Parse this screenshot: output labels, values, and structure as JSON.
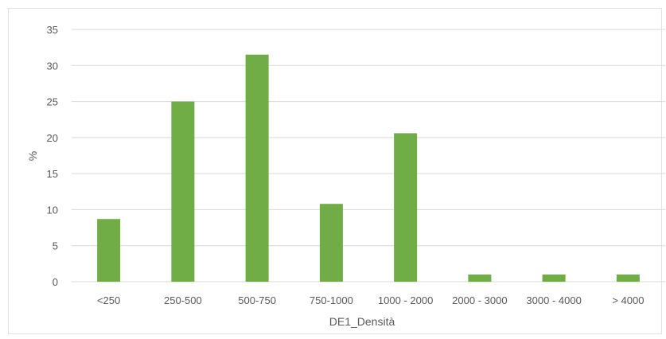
{
  "chart_data": {
    "type": "bar",
    "title": "",
    "xlabel": "DE1_Densità",
    "ylabel": "%",
    "categories": [
      "<250",
      "250-500",
      "500-750",
      "750-1000",
      "1000 - 2000",
      "2000 - 3000",
      "3000 - 4000",
      "> 4000"
    ],
    "values": [
      8.7,
      25.0,
      31.5,
      10.8,
      20.6,
      1.0,
      1.0,
      1.0
    ],
    "ylim": [
      0,
      35
    ],
    "yticks": [
      0,
      5,
      10,
      15,
      20,
      25,
      30,
      35
    ],
    "grid": true,
    "legend": "none",
    "bar_color": "#70AD47",
    "grid_color": "#d9d9d9"
  }
}
